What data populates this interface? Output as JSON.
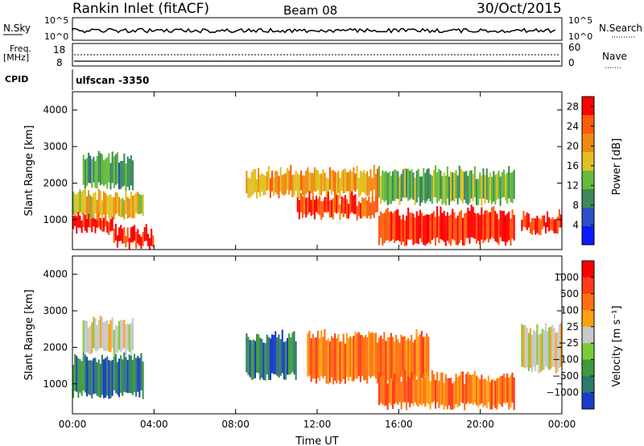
{
  "header": {
    "title": "Rankin Inlet (fitACF)",
    "beam": "Beam 08",
    "date": "30/Oct/2015"
  },
  "strips": {
    "nsky_label": "N.Sky",
    "nsearch_label": "N.Search",
    "noise_ticks": [
      "10^5",
      "10^0"
    ],
    "freq_label_1": "Freq.",
    "freq_label_2": "[MHz]",
    "freq_ticks": [
      "18",
      "8"
    ],
    "nave_label": "Nave",
    "nave_ticks": [
      "60",
      "0"
    ],
    "cpid_label": "CPID",
    "cpid_value": "ulfscan -3350"
  },
  "chart_data": [
    {
      "type": "heatmap",
      "panel": "power",
      "ylabel": "Slant Range [km]",
      "xlabel": "Time UT",
      "xlim": [
        0,
        24
      ],
      "ylim": [
        180,
        4500
      ],
      "x_ticks": [
        "00:00",
        "04:00",
        "08:00",
        "12:00",
        "16:00",
        "20:00",
        "00:00"
      ],
      "y_ticks": [
        1000,
        2000,
        3000,
        4000
      ],
      "colorbar": {
        "label": "Power [dB]",
        "ticks": [
          4,
          8,
          12,
          16,
          20,
          24,
          28
        ],
        "range": [
          0,
          30
        ],
        "colors": [
          "#0a1aff",
          "#2e4fc6",
          "#3a8a5a",
          "#66bb3a",
          "#e0c020",
          "#f08a10",
          "#ff5a0a",
          "#ff0000"
        ]
      },
      "echo_bands": [
        {
          "t0": 0.0,
          "t1": 2.0,
          "r0": 700,
          "r1": 1100,
          "level": 30
        },
        {
          "t0": 0.0,
          "t1": 3.5,
          "r0": 1100,
          "r1": 1700,
          "level": 18
        },
        {
          "t0": 0.5,
          "t1": 3.0,
          "r0": 1900,
          "r1": 2700,
          "level": 10
        },
        {
          "t0": 2.0,
          "t1": 4.0,
          "r0": 300,
          "r1": 700,
          "level": 29
        },
        {
          "t0": 8.5,
          "t1": 15.0,
          "r0": 1700,
          "r1": 2300,
          "level": 20
        },
        {
          "t0": 11.0,
          "t1": 15.0,
          "r0": 1100,
          "r1": 1600,
          "level": 26
        },
        {
          "t0": 15.0,
          "t1": 21.7,
          "r0": 400,
          "r1": 1200,
          "level": 29
        },
        {
          "t0": 15.0,
          "t1": 21.7,
          "r0": 1500,
          "r1": 2300,
          "level": 12
        },
        {
          "t0": 22.0,
          "t1": 24.0,
          "r0": 700,
          "r1": 1100,
          "level": 29
        }
      ]
    },
    {
      "type": "heatmap",
      "panel": "velocity",
      "ylabel": "Slant Range [km]",
      "xlabel": "Time UT",
      "xlim": [
        0,
        24
      ],
      "ylim": [
        180,
        4500
      ],
      "x_ticks": [
        "00:00",
        "04:00",
        "08:00",
        "12:00",
        "16:00",
        "20:00",
        "00:00"
      ],
      "y_ticks": [
        1000,
        2000,
        3000,
        4000
      ],
      "colorbar": {
        "label": "Velocity [m s⁻¹]",
        "ticks": [
          "1000",
          "500",
          "100",
          "25",
          "−25",
          "−100",
          "−500",
          "−1000"
        ],
        "colors": [
          "#1a3cc8",
          "#2f7a6a",
          "#3d9a3d",
          "#7acc3a",
          "#c8c8c8",
          "#ffa010",
          "#ff7010",
          "#ff3a1a",
          "#ff0000"
        ]
      },
      "echo_bands": [
        {
          "t0": 0.0,
          "t1": 3.5,
          "r0": 700,
          "r1": 1700,
          "level": 1
        },
        {
          "t0": 0.5,
          "t1": 3.0,
          "r0": 1900,
          "r1": 2700,
          "level": 4
        },
        {
          "t0": 8.5,
          "t1": 11.0,
          "r0": 1200,
          "r1": 2300,
          "level": 1
        },
        {
          "t0": 11.5,
          "t1": 17.5,
          "r0": 1100,
          "r1": 2300,
          "level": 6
        },
        {
          "t0": 15.0,
          "t1": 21.7,
          "r0": 400,
          "r1": 1200,
          "level": 6
        },
        {
          "t0": 22.0,
          "t1": 24.0,
          "r0": 1400,
          "r1": 2500,
          "level": 4
        }
      ]
    }
  ]
}
